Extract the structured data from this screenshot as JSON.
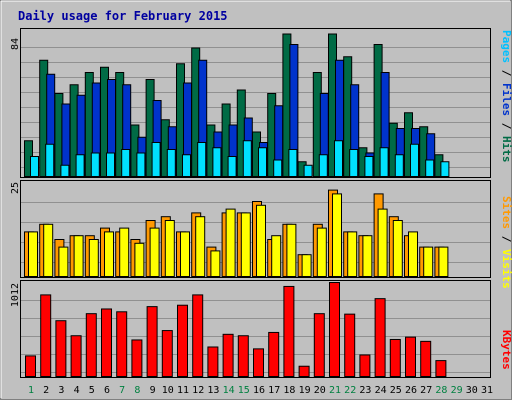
{
  "title": "Daily usage for February 2015",
  "colors": {
    "background": "#c0c0c0",
    "title": "#0000a0",
    "hits": "#006b45",
    "files": "#0033cc",
    "pages": "#00e0ff",
    "visits": "#ffff00",
    "sites": "#ff9900",
    "kbytes": "#ff0000",
    "weekend_label": "#008040",
    "weekday_label": "#000000"
  },
  "chart_data": [
    {
      "type": "bar",
      "title": "Daily usage for February 2015",
      "ymax_label": "84",
      "ylim": [
        0,
        84
      ],
      "legend": [
        {
          "text": "Pages",
          "color": "#00c0ff"
        },
        {
          "text": " / ",
          "color": "#000000"
        },
        {
          "text": "Files",
          "color": "#0033cc"
        },
        {
          "text": " / ",
          "color": "#000000"
        },
        {
          "text": "Hits",
          "color": "#006b45"
        }
      ],
      "categories": [
        "1",
        "2",
        "3",
        "4",
        "5",
        "6",
        "7",
        "8",
        "9",
        "10",
        "11",
        "12",
        "13",
        "14",
        "15",
        "16",
        "17",
        "18",
        "19",
        "20",
        "21",
        "22",
        "23",
        "24",
        "25",
        "26",
        "27",
        "28",
        "29",
        "30",
        "31"
      ],
      "series": [
        {
          "name": "Hits",
          "values": [
            21,
            67,
            48,
            53,
            60,
            63,
            60,
            30,
            56,
            33,
            65,
            74,
            30,
            42,
            50,
            26,
            48,
            82,
            9,
            60,
            82,
            69,
            17,
            76,
            31,
            37,
            29,
            13,
            null,
            null,
            null
          ]
        },
        {
          "name": "Files",
          "values": [
            null,
            59,
            42,
            47,
            54,
            56,
            53,
            23,
            44,
            29,
            54,
            67,
            26,
            30,
            34,
            20,
            41,
            76,
            null,
            48,
            67,
            53,
            14,
            60,
            28,
            28,
            25,
            null,
            null,
            null,
            null
          ]
        },
        {
          "name": "Pages",
          "values": [
            12,
            19,
            7,
            13,
            14,
            14,
            16,
            14,
            20,
            16,
            13,
            20,
            17,
            12,
            21,
            17,
            10,
            16,
            7,
            13,
            21,
            16,
            12,
            17,
            13,
            19,
            10,
            9,
            null,
            null,
            null
          ]
        }
      ]
    },
    {
      "type": "bar",
      "ymax_label": "25",
      "ylim": [
        0,
        25
      ],
      "legend": [
        {
          "text": "Sites",
          "color": "#ff9900"
        },
        {
          "text": " / ",
          "color": "#000000"
        },
        {
          "text": "Visits",
          "color": "#ffff00"
        }
      ],
      "categories": [
        "1",
        "2",
        "3",
        "4",
        "5",
        "6",
        "7",
        "8",
        "9",
        "10",
        "11",
        "12",
        "13",
        "14",
        "15",
        "16",
        "17",
        "18",
        "19",
        "20",
        "21",
        "22",
        "23",
        "24",
        "25",
        "26",
        "27",
        "28",
        "29",
        "30",
        "31"
      ],
      "series": [
        {
          "name": "Visits",
          "values": [
            12,
            14,
            8,
            11,
            10,
            12,
            13,
            9,
            13,
            15,
            12,
            16,
            7,
            18,
            17,
            19,
            11,
            14,
            6,
            13,
            22,
            12,
            11,
            18,
            15,
            12,
            8,
            8,
            null,
            null,
            null
          ]
        },
        {
          "name": "Sites",
          "values": [
            12,
            14,
            10,
            11,
            11,
            13,
            12,
            10,
            15,
            16,
            12,
            17,
            8,
            17,
            17,
            20,
            10,
            14,
            6,
            14,
            23,
            12,
            11,
            22,
            16,
            11,
            8,
            8,
            null,
            null,
            null
          ]
        }
      ]
    },
    {
      "type": "bar",
      "ymax_label": "1012",
      "ylim": [
        0,
        1012
      ],
      "legend": [
        {
          "text": "KBytes",
          "color": "#ff0000"
        }
      ],
      "categories": [
        "1",
        "2",
        "3",
        "4",
        "5",
        "6",
        "7",
        "8",
        "9",
        "10",
        "11",
        "12",
        "13",
        "14",
        "15",
        "16",
        "17",
        "18",
        "19",
        "20",
        "21",
        "22",
        "23",
        "24",
        "25",
        "26",
        "27",
        "28",
        "29",
        "30",
        "31"
      ],
      "series": [
        {
          "name": "KBytes",
          "values": [
            230,
            880,
            605,
            445,
            680,
            730,
            700,
            400,
            755,
            500,
            770,
            880,
            325,
            460,
            445,
            305,
            480,
            970,
            120,
            680,
            1012,
            675,
            240,
            840,
            405,
            430,
            385,
            180,
            null,
            null,
            null
          ]
        }
      ]
    }
  ],
  "x_labels": [
    {
      "text": "1",
      "weekend": true
    },
    {
      "text": "2",
      "weekend": false
    },
    {
      "text": "3",
      "weekend": false
    },
    {
      "text": "4",
      "weekend": false
    },
    {
      "text": "5",
      "weekend": false
    },
    {
      "text": "6",
      "weekend": false
    },
    {
      "text": "7",
      "weekend": true
    },
    {
      "text": "8",
      "weekend": true
    },
    {
      "text": "9",
      "weekend": false
    },
    {
      "text": "10",
      "weekend": false
    },
    {
      "text": "11",
      "weekend": false
    },
    {
      "text": "12",
      "weekend": false
    },
    {
      "text": "13",
      "weekend": false
    },
    {
      "text": "14",
      "weekend": true
    },
    {
      "text": "15",
      "weekend": true
    },
    {
      "text": "16",
      "weekend": false
    },
    {
      "text": "17",
      "weekend": false
    },
    {
      "text": "18",
      "weekend": false
    },
    {
      "text": "19",
      "weekend": false
    },
    {
      "text": "20",
      "weekend": false
    },
    {
      "text": "21",
      "weekend": true
    },
    {
      "text": "22",
      "weekend": true
    },
    {
      "text": "23",
      "weekend": false
    },
    {
      "text": "24",
      "weekend": false
    },
    {
      "text": "25",
      "weekend": false
    },
    {
      "text": "26",
      "weekend": false
    },
    {
      "text": "27",
      "weekend": false
    },
    {
      "text": "28",
      "weekend": true
    },
    {
      "text": "29",
      "weekend": true
    },
    {
      "text": "30",
      "weekend": false
    },
    {
      "text": "31",
      "weekend": false
    }
  ]
}
